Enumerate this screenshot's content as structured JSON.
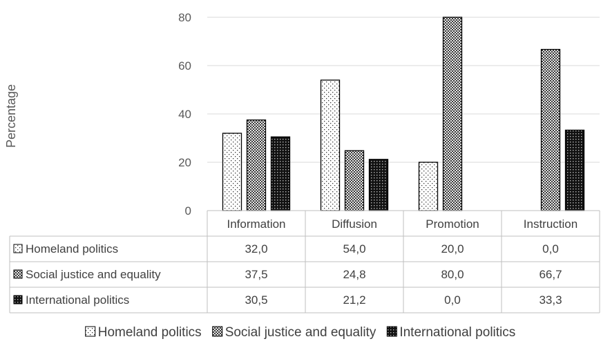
{
  "chart_data": {
    "type": "bar",
    "ylabel": "Percentage",
    "ylim": [
      0,
      80
    ],
    "yticks": [
      0,
      20,
      40,
      60,
      80
    ],
    "grid": true,
    "categories": [
      "Information",
      "Diffusion",
      "Promotion",
      "Instruction"
    ],
    "series": [
      {
        "name": "Homeland politics",
        "values": [
          32.0,
          54.0,
          20.0,
          0.0
        ],
        "table_values": [
          "32,0",
          "54,0",
          "20,0",
          "0,0"
        ]
      },
      {
        "name": "Social justice and equality",
        "values": [
          37.5,
          24.8,
          80.0,
          66.7
        ],
        "table_values": [
          "37,5",
          "24,8",
          "80,0",
          "66,7"
        ]
      },
      {
        "name": "International politics",
        "values": [
          30.5,
          21.2,
          0.0,
          33.3
        ],
        "table_values": [
          "30,5",
          "21,2",
          "0,0",
          "33,3"
        ]
      }
    ],
    "legend": "bottom"
  }
}
